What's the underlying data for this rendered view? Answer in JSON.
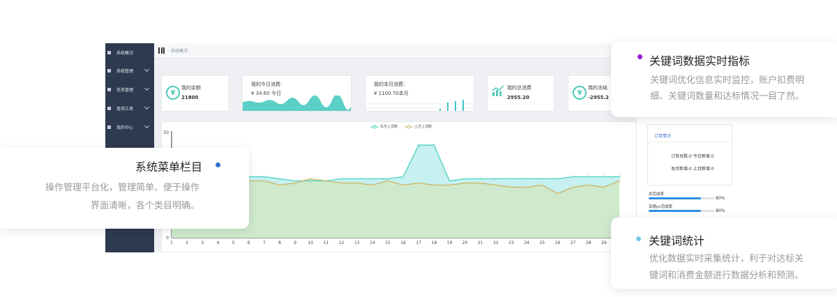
{
  "sidebar": {
    "items": [
      {
        "label": "系统概况"
      },
      {
        "label": "系统管理"
      },
      {
        "label": "任务管理"
      },
      {
        "label": "查询工具"
      },
      {
        "label": "我的中心"
      }
    ]
  },
  "header": {
    "breadcrumb": "系统概况"
  },
  "cards": {
    "balance": {
      "label": "我的余额",
      "value": "21800"
    },
    "today": {
      "label": "我的今日消费:",
      "value": "¥  34.60 今日"
    },
    "month": {
      "label": "我的本月消费:",
      "value": "¥  1100.70本月"
    },
    "total": {
      "label": "我的总消费",
      "value": "2955.20"
    },
    "frozen": {
      "label": "我的冻结",
      "value": "-2955.2"
    }
  },
  "chart_data": {
    "type": "area",
    "x": [
      1,
      2,
      3,
      4,
      5,
      6,
      7,
      8,
      9,
      10,
      11,
      12,
      13,
      14,
      15,
      16,
      17,
      18,
      19,
      20,
      21,
      22,
      23,
      24,
      25,
      26,
      27,
      28,
      29,
      30
    ],
    "ylim": [
      0,
      50
    ],
    "ytick_labels": [
      "50",
      "0"
    ],
    "series": [
      {
        "name": "本月上词数",
        "color": "#3dcdbd",
        "values": [
          30,
          29,
          30,
          31,
          30,
          29,
          29,
          28,
          27,
          27,
          27,
          28,
          28,
          28,
          28,
          29,
          44,
          44,
          27,
          28,
          28,
          28,
          28,
          28,
          28,
          28,
          29,
          29,
          29,
          29
        ]
      },
      {
        "name": "上月上词数",
        "color": "#c8b25b",
        "values": [
          26,
          27,
          27,
          26,
          26,
          27,
          27,
          25,
          26,
          28,
          27,
          26,
          26,
          25,
          27,
          25,
          26,
          25,
          25,
          26,
          26,
          25,
          24,
          24,
          25,
          21,
          24,
          25,
          24,
          27
        ]
      }
    ]
  },
  "order_panel": {
    "title": "订单情况",
    "row1": "订单总数:0  今日新增:0",
    "row2": "本月新增:0  上月新增:0"
  },
  "progress": [
    {
      "label": "总完成率",
      "percent": 80,
      "pct_label": "80%"
    },
    {
      "label": "百度pc完成率",
      "percent": 80,
      "pct_label": "80%"
    }
  ],
  "callouts": {
    "menu": {
      "title": "系统菜单栏目",
      "line1": "操作管理平台化，管理简单、便于操作",
      "line2": "界面清晰，各个类目明确。",
      "dot_color": "#2e6fce"
    },
    "realtime": {
      "title": "关键词数据实时指标",
      "line1": "关键词优化信息实时监控，账户扣费明",
      "line2": "细、关键词数量和达标情况一目了然。",
      "dot_color": "#8a1fd6"
    },
    "stats": {
      "title": "关键词统计",
      "line1": "优化数据实时采集统计，利于对达标关",
      "line2": "键词和消费金额进行数据分析和预测。",
      "dot_color": "#7cc8ee"
    }
  }
}
